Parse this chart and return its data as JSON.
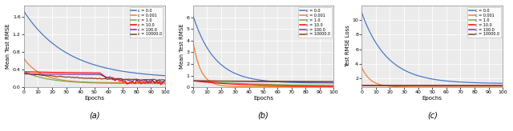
{
  "colors": {
    "c0": "#4472C4",
    "c0001": "#ED7D31",
    "c1": "#70AD47",
    "c10": "#FF0000",
    "c100": "#7030A0",
    "c10000": "#843C0C"
  },
  "legend_labels": [
    "c = 0.0",
    "c = 0.001",
    "c = 1.0",
    "c = 10.0",
    "c = 100.0",
    "c = 10000.0"
  ],
  "xlabel": "Epochs",
  "ylabel_a": "Mean Test RMSE",
  "ylabel_b": "Mean Test RMSE",
  "ylabel_c": "Test RMSE Loss",
  "caption_a": "(a)",
  "caption_b": "(b)",
  "caption_c": "(c)",
  "epochs": 101,
  "xticks": [
    0,
    10,
    20,
    30,
    40,
    50,
    60,
    70,
    80,
    90,
    100
  ],
  "panel_a": {
    "ylim": [
      0.0,
      1.85
    ],
    "yticks": [
      0.0,
      0.4,
      0.8,
      1.2,
      1.6
    ]
  },
  "panel_b": {
    "ylim": [
      0.0,
      7.0
    ],
    "yticks": [
      0,
      1,
      2,
      3,
      4,
      5,
      6
    ]
  },
  "panel_c": {
    "ylim_bottom": 0.8,
    "ylim_top": 12.0,
    "yticks": [
      2,
      4,
      6,
      8,
      10
    ]
  }
}
